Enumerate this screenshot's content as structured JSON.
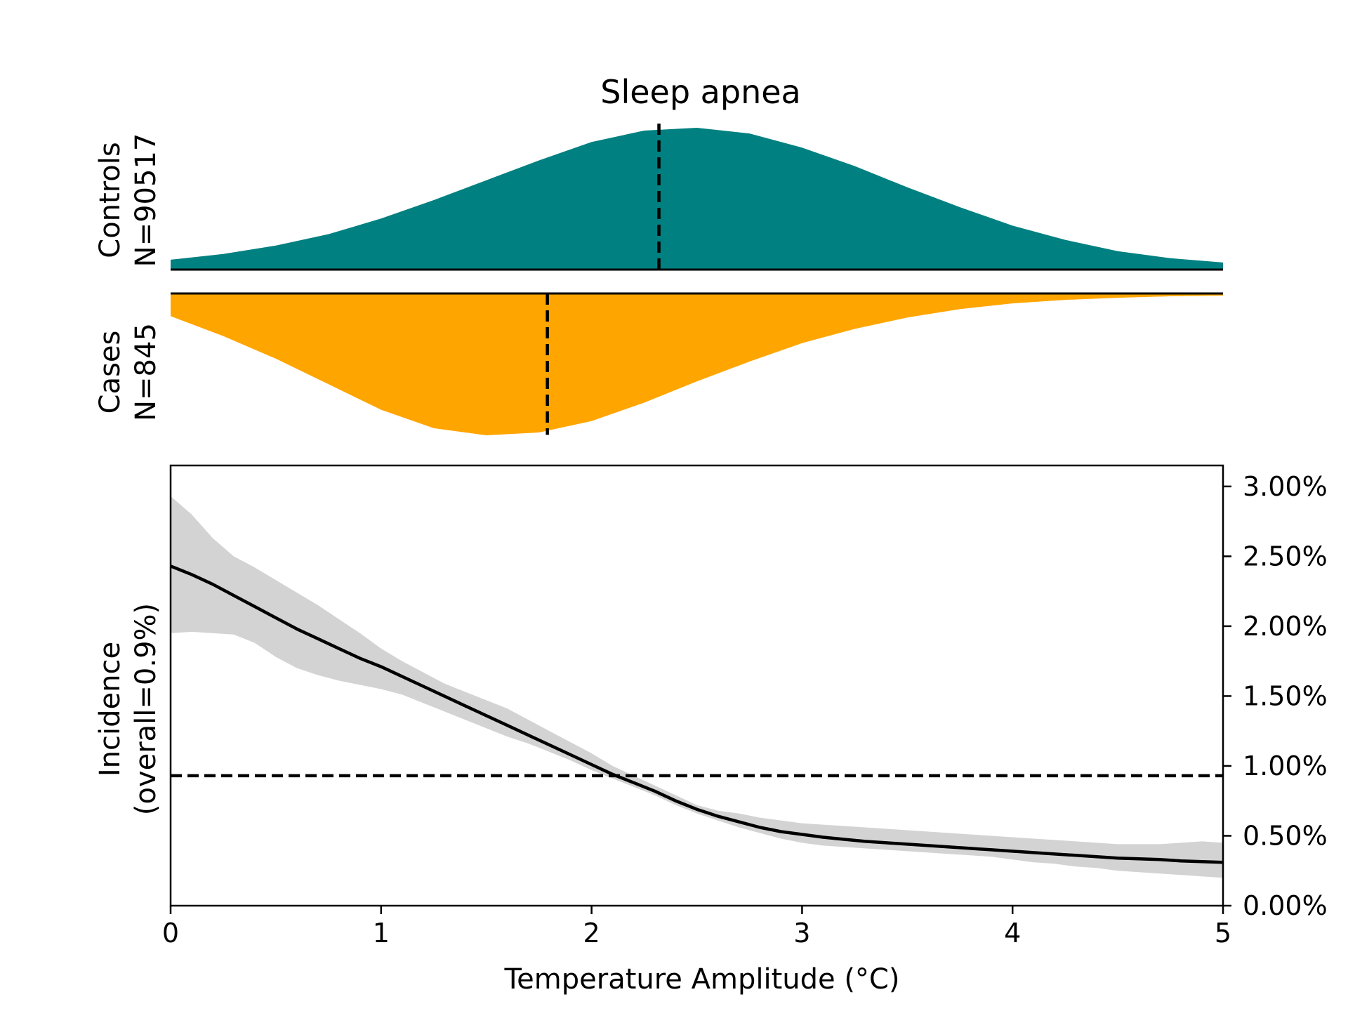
{
  "chart_data": [
    {
      "type": "area",
      "panel": "distributions",
      "title": "Sleep apnea",
      "x_range": [
        0,
        5
      ],
      "groups": [
        {
          "label_line1": "Controls",
          "label_line2": "N=90517",
          "color": "#008080",
          "median": 2.32,
          "density": {
            "x": [
              0,
              0.25,
              0.5,
              0.75,
              1,
              1.25,
              1.5,
              1.75,
              2,
              2.25,
              2.5,
              2.75,
              3,
              3.25,
              3.5,
              3.75,
              4,
              4.25,
              4.5,
              4.75,
              5
            ],
            "y": [
              0.07,
              0.11,
              0.17,
              0.25,
              0.36,
              0.49,
              0.63,
              0.77,
              0.9,
              0.98,
              1.0,
              0.96,
              0.86,
              0.73,
              0.58,
              0.44,
              0.31,
              0.21,
              0.13,
              0.08,
              0.05
            ]
          }
        },
        {
          "label_line1": "Cases",
          "label_line2": "N=845",
          "color": "#FFA500",
          "median": 1.79,
          "density": {
            "x": [
              0,
              0.25,
              0.5,
              0.75,
              1,
              1.25,
              1.5,
              1.75,
              2,
              2.25,
              2.5,
              2.75,
              3,
              3.25,
              3.5,
              3.75,
              4,
              4.25,
              4.5,
              4.75,
              5
            ],
            "y": [
              0.16,
              0.3,
              0.46,
              0.64,
              0.82,
              0.95,
              1.0,
              0.98,
              0.9,
              0.77,
              0.62,
              0.48,
              0.35,
              0.25,
              0.17,
              0.11,
              0.07,
              0.045,
              0.03,
              0.02,
              0.015
            ]
          }
        }
      ]
    },
    {
      "type": "line",
      "panel": "incidence",
      "xlabel": "Temperature Amplitude (°C)",
      "ylabel_line1": "Incidence",
      "ylabel_line2": "(overall=0.9%)",
      "xlim": [
        0,
        5
      ],
      "ylim": [
        0,
        3.15
      ],
      "x_ticks": [
        "0",
        "1",
        "2",
        "3",
        "4",
        "5"
      ],
      "y_ticks": [
        {
          "value": 0,
          "label": "0.00%"
        },
        {
          "value": 0.5,
          "label": "0.50%"
        },
        {
          "value": 1.0,
          "label": "1.00%"
        },
        {
          "value": 1.5,
          "label": "1.50%"
        },
        {
          "value": 2.0,
          "label": "2.00%"
        },
        {
          "value": 2.5,
          "label": "2.50%"
        },
        {
          "value": 3.0,
          "label": "3.00%"
        }
      ],
      "y_axis_side": "right",
      "overall_incidence": 0.93,
      "line_color": "#000000",
      "band_color": "#d3d3d3",
      "x": [
        0,
        0.1,
        0.2,
        0.3,
        0.4,
        0.5,
        0.6,
        0.7,
        0.8,
        0.9,
        1.0,
        1.1,
        1.2,
        1.3,
        1.4,
        1.5,
        1.6,
        1.7,
        1.8,
        1.9,
        2.0,
        2.1,
        2.2,
        2.3,
        2.4,
        2.5,
        2.6,
        2.7,
        2.8,
        2.9,
        3.0,
        3.1,
        3.2,
        3.3,
        3.4,
        3.5,
        3.6,
        3.7,
        3.8,
        3.9,
        4.0,
        4.1,
        4.2,
        4.3,
        4.4,
        4.5,
        4.6,
        4.7,
        4.8,
        4.9,
        5.0
      ],
      "estimate": [
        2.43,
        2.37,
        2.3,
        2.22,
        2.14,
        2.06,
        1.98,
        1.91,
        1.84,
        1.77,
        1.71,
        1.64,
        1.57,
        1.5,
        1.43,
        1.36,
        1.29,
        1.22,
        1.15,
        1.08,
        1.01,
        0.94,
        0.88,
        0.82,
        0.75,
        0.69,
        0.64,
        0.6,
        0.56,
        0.53,
        0.51,
        0.49,
        0.475,
        0.46,
        0.45,
        0.44,
        0.43,
        0.42,
        0.41,
        0.4,
        0.39,
        0.38,
        0.37,
        0.36,
        0.35,
        0.34,
        0.335,
        0.33,
        0.32,
        0.315,
        0.31
      ],
      "upper": [
        2.93,
        2.8,
        2.63,
        2.5,
        2.42,
        2.33,
        2.24,
        2.15,
        2.05,
        1.95,
        1.84,
        1.75,
        1.67,
        1.59,
        1.53,
        1.47,
        1.41,
        1.33,
        1.25,
        1.17,
        1.09,
        1.0,
        0.93,
        0.86,
        0.79,
        0.72,
        0.68,
        0.66,
        0.63,
        0.61,
        0.59,
        0.58,
        0.57,
        0.56,
        0.55,
        0.54,
        0.53,
        0.52,
        0.51,
        0.5,
        0.49,
        0.48,
        0.47,
        0.46,
        0.45,
        0.44,
        0.44,
        0.44,
        0.45,
        0.46,
        0.45
      ],
      "lower": [
        1.95,
        1.96,
        1.95,
        1.94,
        1.88,
        1.78,
        1.7,
        1.65,
        1.61,
        1.58,
        1.55,
        1.51,
        1.45,
        1.39,
        1.33,
        1.27,
        1.21,
        1.16,
        1.1,
        1.04,
        0.97,
        0.91,
        0.85,
        0.79,
        0.72,
        0.66,
        0.61,
        0.56,
        0.52,
        0.48,
        0.45,
        0.43,
        0.42,
        0.41,
        0.4,
        0.39,
        0.38,
        0.37,
        0.36,
        0.35,
        0.33,
        0.31,
        0.3,
        0.28,
        0.27,
        0.25,
        0.24,
        0.23,
        0.22,
        0.21,
        0.2
      ]
    }
  ]
}
